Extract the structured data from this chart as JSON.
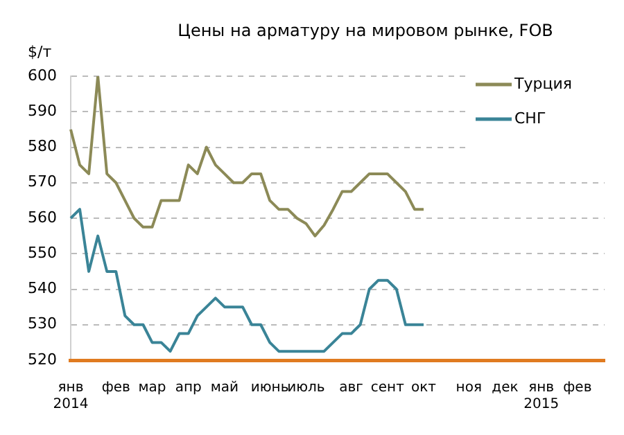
{
  "chart_data": {
    "type": "line",
    "title": "Цены на арматуру на мировом рынке, FOB",
    "ylabel": "$/т",
    "categories": [
      "янв 2014",
      null,
      null,
      null,
      null,
      "фев",
      null,
      null,
      null,
      "мар",
      null,
      null,
      null,
      "апр",
      null,
      null,
      null,
      "май",
      null,
      null,
      null,
      null,
      "июнь",
      null,
      null,
      null,
      "июль",
      null,
      null,
      null,
      null,
      "авг",
      null,
      null,
      null,
      "сент",
      null,
      null,
      null,
      "окт",
      null,
      null,
      null,
      null,
      "ноя",
      null,
      null,
      null,
      "дек",
      null,
      null,
      null,
      "янв 2015",
      null,
      null,
      null,
      "фев",
      null,
      null,
      null
    ],
    "series": [
      {
        "name": "Турция",
        "color": "#8c8a57",
        "values": [
          585,
          575,
          572.5,
          600,
          572.5,
          570,
          565,
          560,
          557.5,
          557.5,
          565,
          565,
          565,
          575,
          572.5,
          580,
          575,
          572.5,
          570,
          570,
          572.5,
          572.5,
          565,
          562.5,
          562.5,
          560,
          558.5,
          555,
          558,
          562.5,
          567.5,
          567.5,
          570,
          572.5,
          572.5,
          572.5,
          570,
          567.5,
          562.5,
          562.5,
          null,
          null,
          null,
          null,
          null,
          null,
          null,
          null,
          null,
          null,
          null,
          null,
          null,
          null,
          null,
          null,
          null,
          null,
          null,
          null
        ]
      },
      {
        "name": "СНГ",
        "color": "#3a8497",
        "values": [
          560,
          562.5,
          545,
          555,
          545,
          545,
          532.5,
          530,
          530,
          525,
          525,
          522.5,
          527.5,
          527.5,
          532.5,
          535,
          537.5,
          535,
          535,
          535,
          530,
          530,
          525,
          522.5,
          522.5,
          522.5,
          522.5,
          522.5,
          522.5,
          525,
          527.5,
          527.5,
          530,
          540,
          542.5,
          542.5,
          540,
          530,
          530,
          530,
          null,
          null,
          null,
          null,
          null,
          null,
          null,
          null,
          null,
          null,
          null,
          null,
          null,
          null,
          null,
          null,
          null,
          null,
          null,
          null
        ]
      }
    ],
    "ylim": [
      520,
      600
    ],
    "yticks": [
      520,
      530,
      540,
      550,
      560,
      570,
      580,
      590,
      600
    ],
    "grid": "y",
    "legend": "top right",
    "marker": "none",
    "line_style": "solid"
  }
}
